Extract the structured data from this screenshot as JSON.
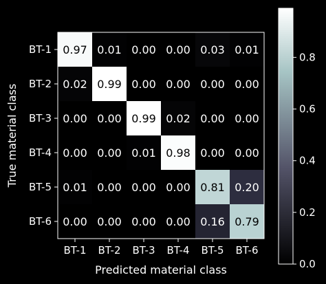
{
  "chart_data": {
    "type": "heatmap",
    "title": "",
    "xlabel": "Predicted material class",
    "ylabel": "True material class",
    "x_categories": [
      "BT-1",
      "BT-2",
      "BT-3",
      "BT-4",
      "BT-5",
      "BT-6"
    ],
    "y_categories": [
      "BT-1",
      "BT-2",
      "BT-3",
      "BT-4",
      "BT-5",
      "BT-6"
    ],
    "values": [
      [
        0.97,
        0.01,
        0.0,
        0.0,
        0.03,
        0.01
      ],
      [
        0.02,
        0.99,
        0.0,
        0.0,
        0.0,
        0.0
      ],
      [
        0.0,
        0.0,
        0.99,
        0.02,
        0.0,
        0.0
      ],
      [
        0.0,
        0.0,
        0.01,
        0.98,
        0.0,
        0.0
      ],
      [
        0.01,
        0.0,
        0.0,
        0.0,
        0.81,
        0.2
      ],
      [
        0.0,
        0.0,
        0.0,
        0.0,
        0.16,
        0.79
      ]
    ],
    "value_labels": [
      [
        "0.97",
        "0.01",
        "0.00",
        "0.00",
        "0.03",
        "0.01"
      ],
      [
        "0.02",
        "0.99",
        "0.00",
        "0.00",
        "0.00",
        "0.00"
      ],
      [
        "0.00",
        "0.00",
        "0.99",
        "0.02",
        "0.00",
        "0.00"
      ],
      [
        "0.00",
        "0.00",
        "0.01",
        "0.98",
        "0.00",
        "0.00"
      ],
      [
        "0.01",
        "0.00",
        "0.00",
        "0.00",
        "0.81",
        "0.20"
      ],
      [
        "0.00",
        "0.00",
        "0.00",
        "0.00",
        "0.16",
        "0.79"
      ]
    ],
    "colormap": "bone",
    "vmin": 0.0,
    "vmax": 0.99,
    "colorbar_ticks": [
      0.0,
      0.2,
      0.4,
      0.6,
      0.8
    ],
    "colorbar_tick_labels": [
      "0.0",
      "0.2",
      "0.4",
      "0.6",
      "0.8"
    ],
    "colors": {
      "background": "#000000",
      "foreground": "#ffffff",
      "dark_text": "#000000",
      "light_text": "#ffffff"
    }
  }
}
